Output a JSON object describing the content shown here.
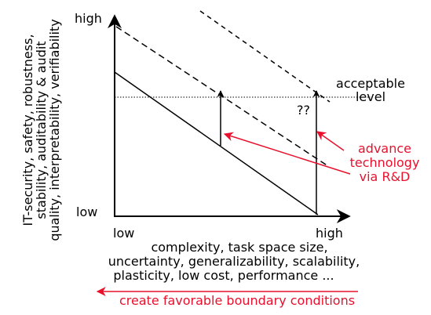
{
  "diagram": {
    "y_axis": {
      "high": "high",
      "low": "low",
      "label": [
        "IT-security, safety, robustness,",
        "stability, auditability & audit",
        "quality, interpretability, verifiability"
      ]
    },
    "x_axis": {
      "low": "low",
      "high": "high",
      "label": [
        "complexity, task space size,",
        "uncertainty, generalizability, scalability,",
        "plasticity, low cost, performance ..."
      ]
    },
    "threshold": [
      "acceptable",
      "level"
    ],
    "unknown": "??",
    "advance": [
      "advance",
      "technology",
      "via R&D"
    ],
    "boundary": "create favorable boundary conditions"
  }
}
